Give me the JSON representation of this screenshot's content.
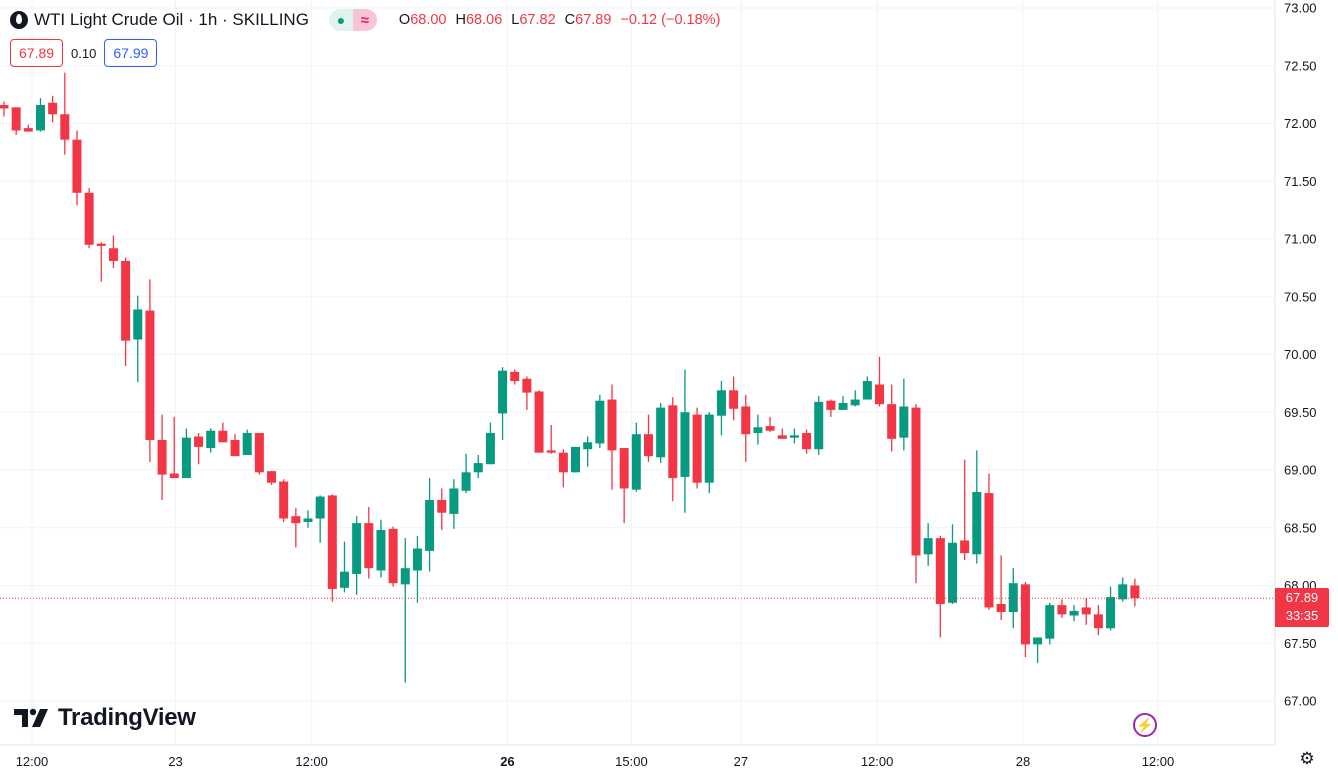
{
  "header": {
    "title": "WTI Light Crude Oil · 1h · SKILLING",
    "icon": "oil-drop-icon",
    "indicator_dot": "●",
    "indicator_wave": "≈",
    "ohlc": {
      "o_label": "O",
      "o": "68.00",
      "h_label": "H",
      "h": "68.06",
      "l_label": "L",
      "l": "67.82",
      "c_label": "C",
      "c": "67.89",
      "change": "−0.12 (−0.18%)"
    }
  },
  "trade": {
    "sell": "67.89",
    "spread": "0.10",
    "buy": "67.99"
  },
  "logo": "TradingView",
  "last_price": {
    "price": "67.89",
    "countdown": "33:35"
  },
  "colors": {
    "up": "#089981",
    "down": "#f23645",
    "grid": "#f0f3fa",
    "buy": "#2962ff",
    "alert": "#9c27b0"
  },
  "chart_data": {
    "type": "candlestick",
    "interval": "1h",
    "ylim": [
      67.0,
      73.0
    ],
    "y_ticks": [
      "73.00",
      "72.50",
      "72.00",
      "71.50",
      "71.00",
      "70.50",
      "70.00",
      "69.50",
      "69.00",
      "68.50",
      "68.00",
      "67.50",
      "67.00"
    ],
    "x_ticks": [
      {
        "label": "12:00",
        "bar_index": 2.3,
        "bold": false
      },
      {
        "label": "23",
        "bar_index": 14.1,
        "bold": false
      },
      {
        "label": "12:00",
        "bar_index": 25.3,
        "bold": false
      },
      {
        "label": "26",
        "bar_index": 41.4,
        "bold": true
      },
      {
        "label": "15:00",
        "bar_index": 51.6,
        "bold": false
      },
      {
        "label": "27",
        "bar_index": 60.6,
        "bold": false
      },
      {
        "label": "12:00",
        "bar_index": 71.8,
        "bold": false
      },
      {
        "label": "28",
        "bar_index": 83.8,
        "bold": false
      },
      {
        "label": "12:00",
        "bar_index": 94.9,
        "bold": false
      }
    ],
    "grid": true,
    "last_price": 67.89,
    "ohlc_columns": [
      "open",
      "high",
      "low",
      "close"
    ],
    "candles": [
      [
        72.16,
        72.19,
        72.06,
        72.13
      ],
      [
        72.14,
        72.14,
        71.9,
        71.94
      ],
      [
        71.96,
        71.99,
        71.93,
        71.93
      ],
      [
        71.94,
        72.22,
        71.93,
        72.16
      ],
      [
        72.18,
        72.24,
        72.01,
        72.08
      ],
      [
        72.08,
        72.44,
        71.73,
        71.86
      ],
      [
        71.86,
        71.94,
        71.29,
        71.4
      ],
      [
        71.4,
        71.44,
        70.92,
        70.95
      ],
      [
        70.96,
        70.97,
        70.63,
        70.94
      ],
      [
        70.92,
        71.03,
        70.75,
        70.81
      ],
      [
        70.81,
        70.84,
        69.9,
        70.12
      ],
      [
        70.13,
        70.51,
        69.76,
        70.39
      ],
      [
        70.38,
        70.65,
        69.07,
        69.26
      ],
      [
        69.26,
        69.48,
        68.74,
        68.96
      ],
      [
        68.97,
        69.46,
        68.93,
        68.93
      ],
      [
        68.93,
        69.36,
        68.93,
        69.28
      ],
      [
        69.29,
        69.32,
        69.05,
        69.2
      ],
      [
        69.19,
        69.36,
        69.15,
        69.34
      ],
      [
        69.34,
        69.41,
        69.24,
        69.24
      ],
      [
        69.26,
        69.31,
        69.12,
        69.12
      ],
      [
        69.13,
        69.35,
        69.13,
        69.32
      ],
      [
        69.32,
        69.32,
        68.96,
        68.98
      ],
      [
        68.99,
        68.99,
        68.87,
        68.89
      ],
      [
        68.9,
        68.92,
        68.55,
        68.58
      ],
      [
        68.6,
        68.67,
        68.33,
        68.54
      ],
      [
        68.55,
        68.65,
        68.5,
        68.58
      ],
      [
        68.58,
        68.78,
        68.37,
        68.77
      ],
      [
        68.78,
        68.79,
        67.86,
        67.97
      ],
      [
        67.98,
        68.38,
        67.94,
        68.12
      ],
      [
        68.1,
        68.6,
        67.92,
        68.54
      ],
      [
        68.54,
        68.68,
        68.06,
        68.15
      ],
      [
        68.13,
        68.57,
        68.07,
        68.48
      ],
      [
        68.49,
        68.51,
        67.99,
        68.02
      ],
      [
        68.01,
        68.41,
        67.16,
        68.15
      ],
      [
        68.13,
        68.43,
        67.85,
        68.32
      ],
      [
        68.3,
        68.93,
        68.12,
        68.74
      ],
      [
        68.74,
        68.84,
        68.48,
        68.63
      ],
      [
        68.62,
        68.92,
        68.49,
        68.84
      ],
      [
        68.82,
        69.14,
        68.8,
        68.98
      ],
      [
        68.98,
        69.13,
        68.93,
        69.06
      ],
      [
        69.05,
        69.41,
        69.05,
        69.32
      ],
      [
        69.49,
        69.89,
        69.26,
        69.86
      ],
      [
        69.85,
        69.87,
        69.74,
        69.77
      ],
      [
        69.79,
        69.81,
        69.52,
        69.67
      ],
      [
        69.68,
        69.69,
        69.15,
        69.15
      ],
      [
        69.17,
        69.39,
        69.14,
        69.15
      ],
      [
        69.15,
        69.18,
        68.85,
        68.98
      ],
      [
        68.98,
        69.2,
        68.98,
        69.2
      ],
      [
        69.18,
        69.29,
        69.03,
        69.24
      ],
      [
        69.23,
        69.65,
        69.19,
        69.6
      ],
      [
        69.61,
        69.74,
        68.83,
        69.17
      ],
      [
        69.19,
        69.19,
        68.54,
        68.84
      ],
      [
        68.83,
        69.41,
        68.81,
        69.31
      ],
      [
        69.31,
        69.48,
        69.07,
        69.12
      ],
      [
        69.11,
        69.58,
        69.06,
        69.54
      ],
      [
        69.56,
        69.63,
        68.73,
        68.93
      ],
      [
        68.94,
        69.87,
        68.63,
        69.5
      ],
      [
        69.48,
        69.54,
        68.84,
        68.89
      ],
      [
        68.89,
        69.5,
        68.8,
        69.48
      ],
      [
        69.47,
        69.77,
        69.3,
        69.69
      ],
      [
        69.69,
        69.81,
        69.43,
        69.53
      ],
      [
        69.55,
        69.65,
        69.07,
        69.31
      ],
      [
        69.32,
        69.48,
        69.22,
        69.37
      ],
      [
        69.38,
        69.46,
        69.33,
        69.34
      ],
      [
        69.3,
        69.36,
        69.27,
        69.27
      ],
      [
        69.28,
        69.36,
        69.23,
        69.3
      ],
      [
        69.32,
        69.35,
        69.14,
        69.18
      ],
      [
        69.18,
        69.64,
        69.13,
        69.59
      ],
      [
        69.6,
        69.61,
        69.46,
        69.52
      ],
      [
        69.52,
        69.64,
        69.52,
        69.58
      ],
      [
        69.56,
        69.69,
        69.55,
        69.61
      ],
      [
        69.61,
        69.81,
        69.61,
        69.77
      ],
      [
        69.74,
        69.98,
        69.55,
        69.57
      ],
      [
        69.57,
        69.74,
        69.16,
        69.27
      ],
      [
        69.28,
        69.79,
        69.17,
        69.55
      ],
      [
        69.54,
        69.57,
        68.02,
        68.26
      ],
      [
        68.27,
        68.54,
        68.17,
        68.41
      ],
      [
        68.41,
        68.43,
        67.55,
        67.84
      ],
      [
        67.85,
        68.53,
        67.84,
        68.37
      ],
      [
        68.39,
        69.09,
        68.22,
        68.28
      ],
      [
        68.27,
        69.17,
        68.19,
        68.81
      ],
      [
        68.8,
        68.97,
        67.79,
        67.81
      ],
      [
        67.84,
        68.26,
        67.7,
        67.77
      ],
      [
        67.77,
        68.15,
        67.63,
        68.02
      ],
      [
        68.01,
        68.03,
        67.38,
        67.49
      ],
      [
        67.49,
        67.55,
        67.33,
        67.55
      ],
      [
        67.54,
        67.85,
        67.49,
        67.83
      ],
      [
        67.83,
        67.88,
        67.72,
        67.75
      ],
      [
        67.74,
        67.83,
        67.69,
        67.78
      ],
      [
        67.81,
        67.89,
        67.66,
        67.75
      ],
      [
        67.75,
        67.83,
        67.57,
        67.63
      ],
      [
        67.63,
        67.99,
        67.61,
        67.9
      ],
      [
        67.88,
        68.07,
        67.86,
        68.01
      ],
      [
        68.0,
        68.06,
        67.82,
        67.89
      ]
    ]
  }
}
